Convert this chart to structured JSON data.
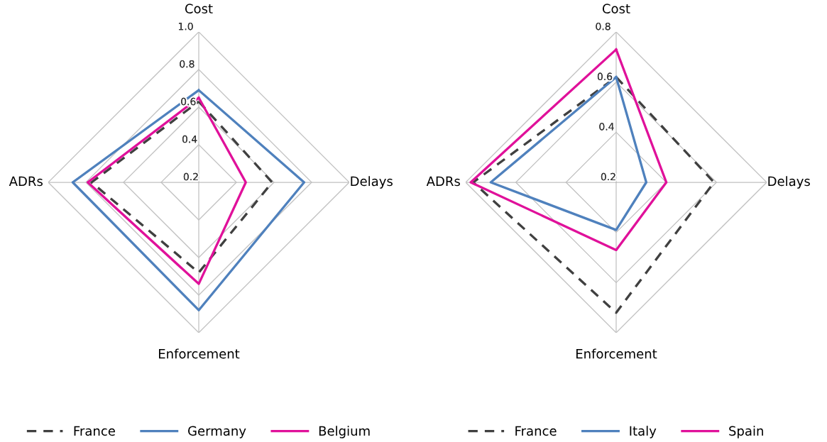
{
  "chart_data": [
    {
      "type": "radar",
      "categories": [
        "Cost",
        "Delays",
        "Enforcement",
        "ADRs"
      ],
      "ylim": [
        0.2,
        1.0
      ],
      "yticks": [
        0.2,
        0.4,
        0.6,
        0.8,
        {
          "value": 1.0,
          "label": "1.0"
        }
      ],
      "grid": true,
      "legend": "bottom",
      "series": [
        {
          "name": "France",
          "color": "#404040",
          "line_style": "dashed",
          "values": [
            0.63,
            0.59,
            0.68,
            0.77
          ]
        },
        {
          "name": "Germany",
          "color": "#4f81bd",
          "line_style": "solid",
          "values": [
            0.69,
            0.76,
            0.88,
            0.87
          ]
        },
        {
          "name": "Belgium",
          "color": "#e0119a",
          "line_style": "solid",
          "values": [
            0.65,
            0.45,
            0.74,
            0.79
          ]
        }
      ]
    },
    {
      "type": "radar",
      "categories": [
        "Cost",
        "Delays",
        "Enforcement",
        "ADRs"
      ],
      "ylim": [
        0.2,
        0.8
      ],
      "yticks": [
        0.2,
        0.4,
        0.6,
        0.8
      ],
      "grid": true,
      "legend": "bottom",
      "series": [
        {
          "name": "France",
          "color": "#404040",
          "line_style": "dashed",
          "values": [
            0.62,
            0.59,
            0.72,
            0.77
          ]
        },
        {
          "name": "Italy",
          "color": "#4f81bd",
          "line_style": "solid",
          "values": [
            0.62,
            0.32,
            0.39,
            0.7
          ]
        },
        {
          "name": "Spain",
          "color": "#e0119a",
          "line_style": "solid",
          "values": [
            0.73,
            0.4,
            0.47,
            0.78
          ]
        }
      ]
    }
  ]
}
